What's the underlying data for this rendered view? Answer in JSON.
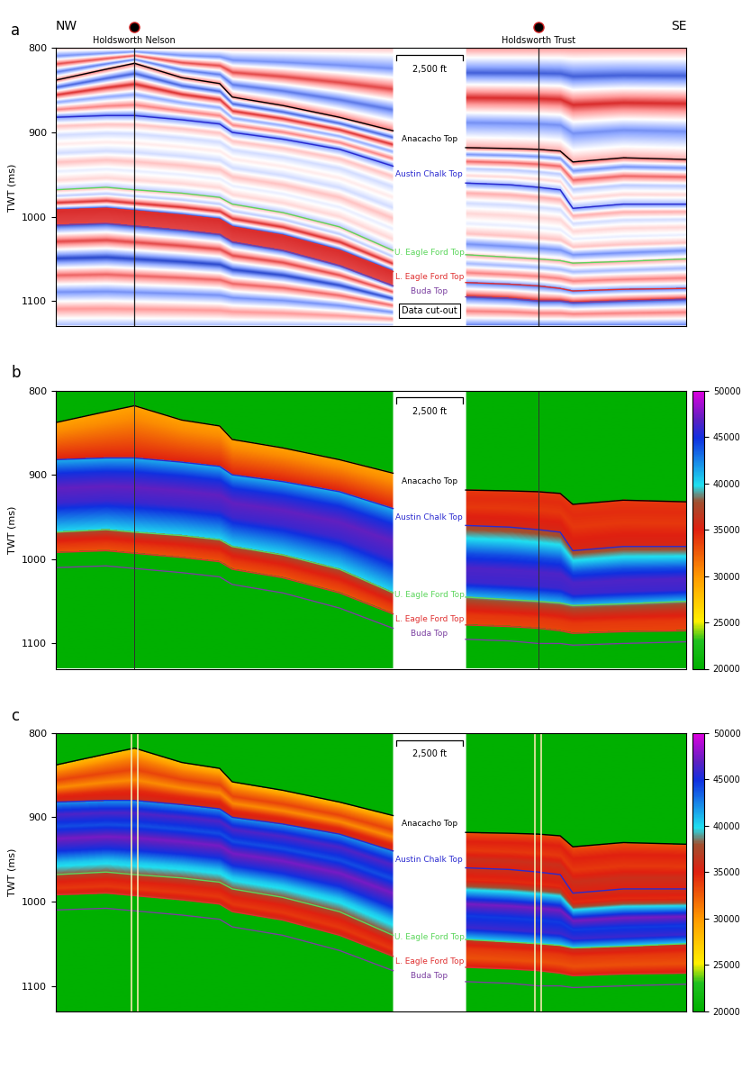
{
  "section": {
    "directions": [
      "NW",
      "SE"
    ],
    "x_left": [
      0,
      8,
      12.5,
      20,
      26,
      28,
      36,
      45,
      53.5
    ],
    "x_right": [
      65,
      72,
      76.5,
      80,
      82,
      90,
      100
    ],
    "cutout": [
      53.5,
      65
    ],
    "scale_bar": "2,500 ft",
    "wells": [
      {
        "name": "Holdsworth Nelson",
        "x": 12.5
      },
      {
        "name": "Holdsworth Trust",
        "x": 76.5
      }
    ],
    "horizons": [
      {
        "name": "Anacacho Top",
        "color": "#000000",
        "left": [
          838,
          825,
          818,
          835,
          842,
          858,
          868,
          882,
          898
        ],
        "right": [
          918,
          919,
          920,
          922,
          935,
          930,
          932
        ]
      },
      {
        "name": "Austin Chalk Top",
        "color": "#2a2ad0",
        "left": [
          882,
          880,
          880,
          885,
          890,
          900,
          908,
          920,
          940
        ],
        "right": [
          960,
          962,
          965,
          968,
          990,
          985,
          985
        ]
      },
      {
        "name": "U. Eagle Ford Top",
        "color": "#5cd65c",
        "left": [
          968,
          965,
          968,
          972,
          977,
          985,
          995,
          1012,
          1040
        ],
        "right": [
          1045,
          1048,
          1050,
          1052,
          1055,
          1053,
          1050
        ]
      },
      {
        "name": "L. Eagle Ford Top",
        "color": "#e03030",
        "left": [
          992,
          990,
          993,
          998,
          1003,
          1012,
          1022,
          1040,
          1065
        ],
        "right": [
          1078,
          1080,
          1082,
          1085,
          1088,
          1086,
          1085
        ]
      },
      {
        "name": "Buda Top",
        "color": "#7a3fa0",
        "left": [
          1010,
          1008,
          1011,
          1016,
          1021,
          1030,
          1040,
          1058,
          1082
        ],
        "right": [
          1095,
          1097,
          1100,
          1100,
          1102,
          1100,
          1098
        ]
      }
    ]
  },
  "chart_data": [
    {
      "panel": "a",
      "type": "seismic",
      "ylabel": "TWT (ms)",
      "xlim": [
        0,
        100
      ],
      "ylim": [
        800,
        1130
      ],
      "yticks": [
        800,
        900,
        1000,
        1100
      ],
      "tick_labels": "y",
      "clim": [
        -1,
        1
      ],
      "cutout_label": "Data cut-out",
      "intervals": [
        {
          "left": [
            0.3,
            -0.6,
            0.8,
            -0.7,
            0.6
          ],
          "right": [
            0.5,
            -0.8,
            0.9,
            -0.6,
            0.4
          ]
        },
        {
          "left": [
            0.7,
            -0.8,
            0.9,
            -0.5,
            0.6,
            -0.7
          ],
          "right": [
            0.8,
            -0.6,
            0.7,
            -0.3,
            0.2,
            -0.4
          ]
        },
        {
          "left": [
            -0.6,
            0.3,
            -0.2,
            0.1,
            -0.2,
            0.3,
            -0.1,
            0.2,
            -0.3
          ],
          "right": [
            -0.7,
            0.4,
            -0.2,
            0.2,
            -0.1,
            0.3,
            -0.6,
            0.2
          ]
        },
        {
          "left": [
            0.4,
            -0.3,
            0.9,
            -0.9
          ],
          "right": [
            0.5,
            -0.4,
            0.6,
            -0.5
          ]
        },
        {
          "left": [
            0.9,
            0.8
          ],
          "right": [
            -0.8,
            0.9
          ]
        },
        {
          "left": [
            -0.9,
            0.8,
            -0.9,
            0.7,
            -0.6,
            0.5,
            -0.4
          ],
          "right": [
            -0.9,
            0.6,
            -0.7
          ]
        }
      ]
    },
    {
      "panel": "b",
      "type": "heatmap",
      "ylabel": "TWT (ms)",
      "xlim": [
        0,
        100
      ],
      "ylim": [
        800,
        1130
      ],
      "yticks": [
        800,
        900,
        1000,
        1100
      ],
      "tick_labels": "y",
      "clim": [
        20000,
        50000
      ],
      "colorbar_ticks": [
        20000,
        25000,
        30000,
        35000,
        40000,
        45000,
        50000
      ],
      "intervals": [
        {
          "left": [
            29500,
            30500,
            32000,
            33500,
            35000
          ],
          "right": [
            34000,
            34500,
            34000,
            35000,
            35500
          ]
        },
        {
          "left": [
            41000,
            45000,
            47000,
            46000,
            43000,
            40000
          ],
          "right": [
            37000,
            40000,
            44000,
            46500,
            46000,
            41000
          ]
        },
        {
          "left": [
            38000,
            35500,
            34000,
            33000
          ],
          "right": [
            39000,
            36000,
            34000,
            33500
          ]
        }
      ]
    },
    {
      "panel": "c",
      "type": "heatmap",
      "ylabel": "TWT (ms)",
      "xlim": [
        0,
        100
      ],
      "ylim": [
        800,
        1130
      ],
      "yticks": [
        800,
        900,
        1000,
        1100
      ],
      "tick_labels": "y",
      "clim": [
        20000,
        50000
      ],
      "colorbar_ticks": [
        20000,
        25000,
        30000,
        35000,
        40000,
        45000,
        50000
      ],
      "intervals": [
        {
          "left": [
            28000,
            31000,
            33500,
            30500,
            34500,
            36000
          ],
          "right": [
            33000,
            35000,
            34000,
            36000,
            35000
          ]
        },
        {
          "left": [
            42000,
            46500,
            44000,
            47500,
            45000,
            40500,
            38000
          ],
          "right": [
            36000,
            34500,
            41000,
            47500,
            44500,
            46000,
            40000
          ]
        },
        {
          "left": [
            37500,
            35000,
            34000,
            36000
          ],
          "right": [
            36500,
            34000,
            33000,
            35500
          ]
        }
      ]
    }
  ]
}
